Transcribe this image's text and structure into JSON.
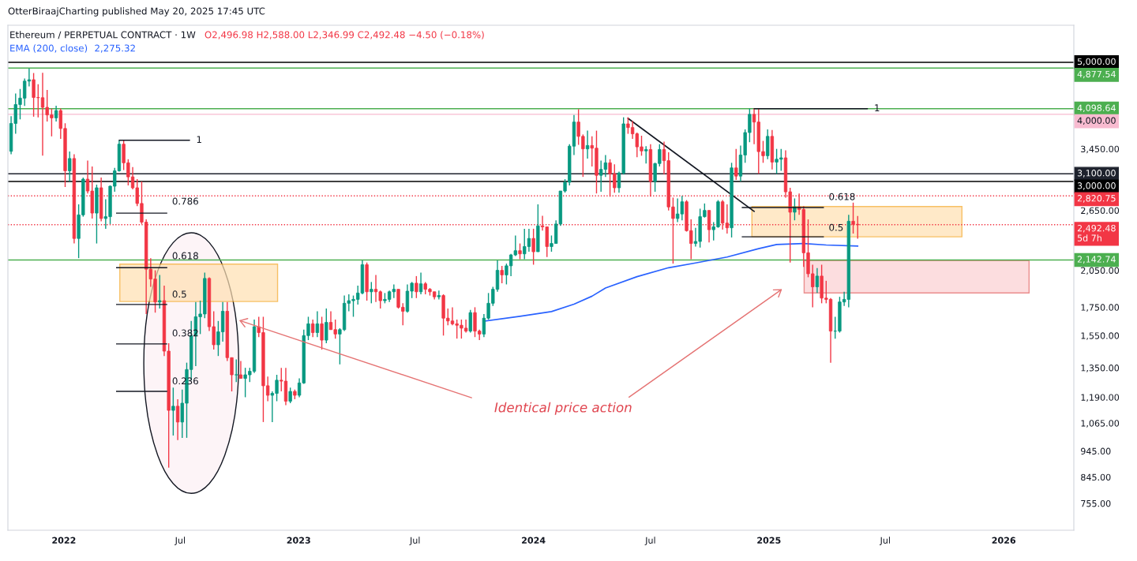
{
  "chart_data": {
    "type": "candlestick",
    "title": "Ethereum / PERPETUAL CONTRACT · 1W",
    "subtitle": "O2,496.98 H2,588.00 L2,346.99 C2,492.48 −4.50 (−0.18%)",
    "annotations": [
      "OtterBiraajCharting published May 20, 2025 17:45 UTC",
      "Identical price action",
      "2,275.32",
      {
        "text": "1",
        "x": "2022-03-28",
        "y": 3580
      },
      "0.786",
      "0.618",
      "0.5",
      "0.382",
      "0.236",
      {
        "text": "1",
        "x": "2024-12-09",
        "y": 4098.64
      },
      "0.618",
      "0.5"
    ],
    "xlim": [
      "2021-10-06",
      "2026-04-20"
    ],
    "xticks": [
      {
        "value": "2022-01-01",
        "label": "2022"
      },
      {
        "value": "2022-07-01",
        "label": "Jul"
      },
      {
        "value": "2023-01-01",
        "label": "2023"
      },
      {
        "value": "2023-07-01",
        "label": "Jul"
      },
      {
        "value": "2024-01-01",
        "label": "2024"
      },
      {
        "value": "2024-07-01",
        "label": "Jul"
      },
      {
        "value": "2025-01-01",
        "label": "2025"
      },
      {
        "value": "2025-07-01",
        "label": "Jul"
      },
      {
        "value": "2026-01-01",
        "label": "2026"
      }
    ],
    "log": "y",
    "ylim": [
      673,
      5860
    ],
    "yticks": [
      {
        "value": 755,
        "label": "755.00"
      },
      {
        "value": 845,
        "label": "845.00"
      },
      {
        "value": 945,
        "label": "945.00"
      },
      {
        "value": 1065,
        "label": "1,065.00"
      },
      {
        "value": 1190,
        "label": "1,190.00"
      },
      {
        "value": 1350,
        "label": "1,350.00"
      },
      {
        "value": 1550,
        "label": "1,550.00"
      },
      {
        "value": 1750,
        "label": "1,750.00"
      },
      {
        "value": 2050,
        "label": "2,050.00"
      },
      {
        "value": 2650,
        "label": "2,650.00"
      },
      {
        "value": 3450,
        "label": "3,450.00"
      }
    ],
    "ref_lines": [
      {
        "axis": "y",
        "value": 5000,
        "label": "5,000.00",
        "color": "#000000",
        "line_style": "solid"
      },
      {
        "axis": "y",
        "value": 4877.54,
        "label": "4,877.54",
        "color": "#4caf50",
        "line_style": "solid"
      },
      {
        "axis": "y",
        "value": 4098.64,
        "label": "4,098.64",
        "color": "#4caf50",
        "line_style": "solid"
      },
      {
        "axis": "y",
        "value": 4000,
        "label": "4,000.00",
        "color": "#f8bbd0",
        "line_style": "solid"
      },
      {
        "axis": "y",
        "value": 3100,
        "label": "3,100.00",
        "color": "#1e222d",
        "line_style": "solid"
      },
      {
        "axis": "y",
        "value": 3000,
        "label": "3,000.00",
        "color": "#000000",
        "line_style": "solid"
      },
      {
        "axis": "y",
        "value": 2820.75,
        "label": "2,820.75",
        "color": "#f23645",
        "line_style": "dotted"
      },
      {
        "axis": "y",
        "value": 2492.48,
        "label": "2,492.48\n5d 7h",
        "color": "#f23645",
        "line_style": "dotted"
      },
      {
        "axis": "y",
        "value": 2142.74,
        "label": "2,142.74",
        "color": "#4caf50",
        "line_style": "solid"
      }
    ],
    "marker": "none",
    "series": [
      {
        "type": "line",
        "color": "#131722",
        "x": [
          "2024-05-27",
          "2024-12-09"
        ],
        "values": [
          3932,
          2639
        ]
      },
      {
        "type": "line",
        "name": "EMA (200, close)",
        "color": "#2962ff",
        "x": [
          "2023-10-16",
          "2023-12-11",
          "2024-01-29",
          "2024-03-04",
          "2024-04-01",
          "2024-04-22",
          "2024-06-10",
          "2024-07-29",
          "2024-09-09",
          "2024-10-28",
          "2024-12-16",
          "2025-01-13",
          "2025-02-24",
          "2025-03-31",
          "2025-05-19"
        ],
        "values": [
          1649,
          1683,
          1718,
          1773,
          1835,
          1900,
          1995,
          2073,
          2116,
          2170,
          2250,
          2290,
          2300,
          2285,
          2275.32
        ]
      },
      {
        "colors": [
          "#089981",
          "#089981",
          "#089981",
          "#089981",
          "#089981",
          "#f23645",
          "#f23645",
          "#f23645",
          "#f23645",
          "#f23645",
          "#089981",
          "#f23645",
          "#f23645",
          "#089981",
          "#f23645",
          "#089981",
          "#089981",
          "#f23645",
          "#f23645",
          "#089981",
          "#f23645",
          "#089981",
          "#089981",
          "#089981",
          "#089981",
          "#f23645",
          "#f23645",
          "#f23645",
          "#f23645",
          "#f23645",
          "#f23645",
          "#f23645",
          "#f23645",
          "#089981",
          "#f23645",
          "#f23645",
          "#089981",
          "#f23645",
          "#089981",
          "#089981",
          "#089981",
          "#089981",
          "#089981",
          "#089981",
          "#f23645",
          "#f23645",
          "#089981",
          "#089981",
          "#f23645",
          "#f23645",
          "#089981",
          "#f23645",
          "#089981",
          "#089981",
          "#089981",
          "#f23645",
          "#f23645",
          "#f23645",
          "#089981",
          "#089981",
          "#f23645",
          "#f23645",
          "#089981",
          "#f23645",
          "#089981",
          "#089981",
          "#089981",
          "#f23645",
          "#089981",
          "#f23645",
          "#089981",
          "#f23645",
          "#f23645",
          "#089981",
          "#089981",
          "#089981",
          "#089981",
          "#089981",
          "#089981",
          "#f23645",
          "#089981",
          "#f23645",
          "#f23645",
          "#089981",
          "#089981",
          "#089981",
          "#f23645",
          "#f23645",
          "#089981",
          "#089981",
          "#f23645",
          "#089981",
          "#f23645",
          "#f23645",
          "#f23645",
          "#089981",
          "#f23645",
          "#f23645",
          "#f23645",
          "#f23645",
          "#f23645",
          "#f23645",
          "#089981",
          "#f23645",
          "#f23645",
          "#089981",
          "#089981",
          "#089981",
          "#089981",
          "#f23645",
          "#089981",
          "#089981",
          "#089981",
          "#f23645",
          "#089981",
          "#089981",
          "#f23645",
          "#089981",
          "#f23645",
          "#f23645",
          "#089981",
          "#089981",
          "#089981",
          "#089981",
          "#089981",
          "#089981",
          "#f23645",
          "#f23645",
          "#089981",
          "#f23645",
          "#f23645",
          "#089981",
          "#089981",
          "#f23645",
          "#f23645",
          "#089981",
          "#089981",
          "#f23645",
          "#f23645",
          "#f23645",
          "#f23645",
          "#089981",
          "#f23645",
          "#089981",
          "#089981",
          "#f23645",
          "#f23645",
          "#f23645",
          "#089981",
          "#089981",
          "#f23645",
          "#f23645",
          "#089981",
          "#089981",
          "#089981",
          "#f23645",
          "#089981",
          "#089981",
          "#f23645",
          "#f23645",
          "#089981",
          "#f23645",
          "#089981",
          "#089981",
          "#089981",
          "#f23645",
          "#f23645",
          "#f23645",
          "#089981",
          "#f23645",
          "#089981",
          "#089981",
          "#f23645",
          "#f23645",
          "#089981",
          "#f23645",
          "#f23645",
          "#f23645",
          "#f23645",
          "#089981",
          "#f23645",
          "#f23645",
          "#f23645",
          "#089981",
          "#089981",
          "#089981",
          "#089981",
          "#f23645",
          "#f23645"
        ],
        "x": [
          "2021-10-11",
          "2021-10-18",
          "2021-10-25",
          "2021-11-01",
          "2021-11-08",
          "2021-11-15",
          "2021-11-22",
          "2021-11-29",
          "2021-12-06",
          "2021-12-13",
          "2021-12-20",
          "2021-12-27",
          "2022-01-03",
          "2022-01-10",
          "2022-01-17",
          "2022-01-24",
          "2022-01-31",
          "2022-02-07",
          "2022-02-14",
          "2022-02-21",
          "2022-02-28",
          "2022-03-07",
          "2022-03-14",
          "2022-03-21",
          "2022-03-28",
          "2022-04-04",
          "2022-04-11",
          "2022-04-18",
          "2022-04-25",
          "2022-05-02",
          "2022-05-09",
          "2022-05-16",
          "2022-05-23",
          "2022-05-30",
          "2022-06-06",
          "2022-06-13",
          "2022-06-20",
          "2022-06-27",
          "2022-07-04",
          "2022-07-11",
          "2022-07-18",
          "2022-07-25",
          "2022-08-01",
          "2022-08-08",
          "2022-08-15",
          "2022-08-22",
          "2022-08-29",
          "2022-09-05",
          "2022-09-12",
          "2022-09-19",
          "2022-09-26",
          "2022-10-03",
          "2022-10-10",
          "2022-10-17",
          "2022-10-24",
          "2022-10-31",
          "2022-11-07",
          "2022-11-14",
          "2022-11-21",
          "2022-11-28",
          "2022-12-05",
          "2022-12-12",
          "2022-12-19",
          "2022-12-26",
          "2023-01-02",
          "2023-01-09",
          "2023-01-16",
          "2023-01-23",
          "2023-01-30",
          "2023-02-06",
          "2023-02-13",
          "2023-02-20",
          "2023-02-27",
          "2023-03-06",
          "2023-03-13",
          "2023-03-20",
          "2023-03-27",
          "2023-04-03",
          "2023-04-10",
          "2023-04-17",
          "2023-04-24",
          "2023-05-01",
          "2023-05-08",
          "2023-05-15",
          "2023-05-22",
          "2023-05-29",
          "2023-06-05",
          "2023-06-12",
          "2023-06-19",
          "2023-06-26",
          "2023-07-03",
          "2023-07-10",
          "2023-07-17",
          "2023-07-24",
          "2023-07-31",
          "2023-08-07",
          "2023-08-14",
          "2023-08-21",
          "2023-08-28",
          "2023-09-04",
          "2023-09-11",
          "2023-09-18",
          "2023-09-25",
          "2023-10-02",
          "2023-10-09",
          "2023-10-16",
          "2023-10-23",
          "2023-10-30",
          "2023-11-06",
          "2023-11-13",
          "2023-11-20",
          "2023-11-27",
          "2023-12-04",
          "2023-12-11",
          "2023-12-18",
          "2023-12-25",
          "2024-01-01",
          "2024-01-08",
          "2024-01-15",
          "2024-01-22",
          "2024-01-29",
          "2024-02-05",
          "2024-02-12",
          "2024-02-19",
          "2024-02-26",
          "2024-03-04",
          "2024-03-11",
          "2024-03-18",
          "2024-03-25",
          "2024-04-01",
          "2024-04-08",
          "2024-04-15",
          "2024-04-22",
          "2024-04-29",
          "2024-05-06",
          "2024-05-13",
          "2024-05-20",
          "2024-05-27",
          "2024-06-03",
          "2024-06-10",
          "2024-06-17",
          "2024-06-24",
          "2024-07-01",
          "2024-07-08",
          "2024-07-15",
          "2024-07-22",
          "2024-07-29",
          "2024-08-05",
          "2024-08-12",
          "2024-08-19",
          "2024-08-26",
          "2024-09-02",
          "2024-09-09",
          "2024-09-16",
          "2024-09-23",
          "2024-09-30",
          "2024-10-07",
          "2024-10-14",
          "2024-10-21",
          "2024-10-28",
          "2024-11-04",
          "2024-11-11",
          "2024-11-18",
          "2024-11-25",
          "2024-12-02",
          "2024-12-09",
          "2024-12-16",
          "2024-12-23",
          "2024-12-30",
          "2025-01-06",
          "2025-01-13",
          "2025-01-20",
          "2025-01-27",
          "2025-02-03",
          "2025-02-10",
          "2025-02-17",
          "2025-02-24",
          "2025-03-03",
          "2025-03-10",
          "2025-03-17",
          "2025-03-24",
          "2025-03-31",
          "2025-04-07",
          "2025-04-14",
          "2025-04-21",
          "2025-04-28",
          "2025-05-05",
          "2025-05-12",
          "2025-05-19"
        ],
        "ohlc": [
          [
            3414,
            3970,
            3370,
            3847
          ],
          [
            3847,
            4375,
            3680,
            4172
          ],
          [
            4172,
            4460,
            3915,
            4288
          ],
          [
            4288,
            4665,
            4146,
            4612
          ],
          [
            4612,
            4868,
            4510,
            4640
          ],
          [
            4640,
            4775,
            3960,
            4300
          ],
          [
            4300,
            4550,
            3950,
            4296
          ],
          [
            4296,
            4778,
            3350,
            4122
          ],
          [
            4122,
            4440,
            3880,
            3990
          ],
          [
            3990,
            4100,
            3640,
            3940
          ],
          [
            3940,
            4150,
            3880,
            4065
          ],
          [
            4065,
            4100,
            3600,
            3765
          ],
          [
            3765,
            3850,
            2930,
            3140
          ],
          [
            3140,
            3410,
            3000,
            3310
          ],
          [
            3310,
            3370,
            2300,
            2350
          ],
          [
            2350,
            2720,
            2160,
            2600
          ],
          [
            2600,
            3050,
            2580,
            3030
          ],
          [
            3030,
            3280,
            2850,
            2880
          ],
          [
            2880,
            3200,
            2560,
            2620
          ],
          [
            2620,
            2960,
            2300,
            2920
          ],
          [
            2920,
            3050,
            2530,
            2560
          ],
          [
            2560,
            2780,
            2450,
            2580
          ],
          [
            2580,
            2950,
            2500,
            2940
          ],
          [
            2940,
            3180,
            2870,
            3140
          ],
          [
            3140,
            3580,
            3130,
            3520
          ],
          [
            3520,
            3580,
            3150,
            3250
          ],
          [
            3250,
            3300,
            2950,
            3060
          ],
          [
            3060,
            3190,
            2900,
            2920
          ],
          [
            2920,
            3030,
            2700,
            2730
          ],
          [
            2730,
            3000,
            2500,
            2520
          ],
          [
            2520,
            2550,
            1700,
            2060
          ],
          [
            2060,
            2160,
            1910,
            1975
          ],
          [
            1975,
            2050,
            1710,
            1790
          ],
          [
            1790,
            2010,
            1740,
            1800
          ],
          [
            1800,
            1920,
            1420,
            1450
          ],
          [
            1450,
            1500,
            880,
            1125
          ],
          [
            1125,
            1240,
            1010,
            1145
          ],
          [
            1145,
            1180,
            990,
            1070
          ],
          [
            1070,
            1230,
            1000,
            1160
          ],
          [
            1160,
            1380,
            1000,
            1340
          ],
          [
            1340,
            1650,
            1280,
            1550
          ],
          [
            1550,
            1790,
            1360,
            1680
          ],
          [
            1680,
            1800,
            1560,
            1700
          ],
          [
            1700,
            2030,
            1670,
            1980
          ],
          [
            1980,
            1990,
            1580,
            1610
          ],
          [
            1610,
            1720,
            1460,
            1490
          ],
          [
            1490,
            1650,
            1420,
            1575
          ],
          [
            1575,
            1790,
            1510,
            1720
          ],
          [
            1720,
            1790,
            1390,
            1410
          ],
          [
            1410,
            1410,
            1220,
            1310
          ],
          [
            1310,
            1400,
            1270,
            1310
          ],
          [
            1310,
            1390,
            1290,
            1290
          ],
          [
            1290,
            1350,
            1190,
            1310
          ],
          [
            1310,
            1350,
            1270,
            1330
          ],
          [
            1330,
            1660,
            1320,
            1610
          ],
          [
            1610,
            1680,
            1540,
            1570
          ],
          [
            1570,
            1680,
            1070,
            1250
          ],
          [
            1250,
            1300,
            1170,
            1200
          ],
          [
            1200,
            1220,
            1070,
            1210
          ],
          [
            1210,
            1310,
            1170,
            1280
          ],
          [
            1280,
            1350,
            1220,
            1275
          ],
          [
            1275,
            1350,
            1150,
            1170
          ],
          [
            1170,
            1240,
            1160,
            1220
          ],
          [
            1220,
            1230,
            1180,
            1200
          ],
          [
            1200,
            1290,
            1190,
            1265
          ],
          [
            1265,
            1590,
            1260,
            1550
          ],
          [
            1550,
            1680,
            1520,
            1630
          ],
          [
            1630,
            1660,
            1540,
            1570
          ],
          [
            1570,
            1720,
            1540,
            1630
          ],
          [
            1630,
            1680,
            1460,
            1520
          ],
          [
            1520,
            1740,
            1500,
            1640
          ],
          [
            1640,
            1720,
            1590,
            1590
          ],
          [
            1590,
            1660,
            1530,
            1560
          ],
          [
            1560,
            1600,
            1370,
            1590
          ],
          [
            1590,
            1840,
            1580,
            1780
          ],
          [
            1780,
            1850,
            1720,
            1800
          ],
          [
            1800,
            1840,
            1680,
            1810
          ],
          [
            1810,
            1920,
            1770,
            1860
          ],
          [
            1860,
            2140,
            1850,
            2100
          ],
          [
            2100,
            2120,
            1800,
            1870
          ],
          [
            1870,
            1950,
            1780,
            1890
          ],
          [
            1890,
            2010,
            1790,
            1870
          ],
          [
            1870,
            1880,
            1740,
            1800
          ],
          [
            1800,
            1860,
            1780,
            1810
          ],
          [
            1810,
            1880,
            1790,
            1870
          ],
          [
            1870,
            1930,
            1820,
            1890
          ],
          [
            1890,
            1890,
            1740,
            1750
          ],
          [
            1750,
            1780,
            1620,
            1720
          ],
          [
            1720,
            1930,
            1710,
            1875
          ],
          [
            1875,
            1950,
            1820,
            1940
          ],
          [
            1940,
            2000,
            1820,
            1870
          ],
          [
            1870,
            2030,
            1850,
            1935
          ],
          [
            1935,
            1950,
            1850,
            1890
          ],
          [
            1890,
            1900,
            1840,
            1870
          ],
          [
            1870,
            1870,
            1810,
            1830
          ],
          [
            1830,
            1880,
            1810,
            1840
          ],
          [
            1840,
            1850,
            1550,
            1670
          ],
          [
            1670,
            1740,
            1620,
            1650
          ],
          [
            1650,
            1750,
            1620,
            1630
          ],
          [
            1630,
            1660,
            1530,
            1620
          ],
          [
            1620,
            1660,
            1530,
            1600
          ],
          [
            1600,
            1660,
            1570,
            1580
          ],
          [
            1580,
            1730,
            1570,
            1710
          ],
          [
            1710,
            1750,
            1540,
            1580
          ],
          [
            1580,
            1590,
            1520,
            1560
          ],
          [
            1560,
            1700,
            1540,
            1670
          ],
          [
            1670,
            1860,
            1660,
            1780
          ],
          [
            1780,
            1910,
            1760,
            1890
          ],
          [
            1890,
            2140,
            1870,
            2050
          ],
          [
            2050,
            2090,
            1940,
            2010
          ],
          [
            2010,
            2110,
            1930,
            2090
          ],
          [
            2090,
            2200,
            2000,
            2190
          ],
          [
            2190,
            2380,
            2180,
            2230
          ],
          [
            2230,
            2300,
            2150,
            2200
          ],
          [
            2200,
            2450,
            2150,
            2270
          ],
          [
            2270,
            2450,
            2220,
            2350
          ],
          [
            2350,
            2450,
            2100,
            2220
          ],
          [
            2220,
            2720,
            2220,
            2480
          ],
          [
            2480,
            2590,
            2430,
            2470
          ],
          [
            2470,
            2470,
            2170,
            2270
          ],
          [
            2270,
            2380,
            2220,
            2300
          ],
          [
            2300,
            2540,
            2300,
            2500
          ],
          [
            2500,
            2880,
            2480,
            2880
          ],
          [
            2880,
            3030,
            2860,
            2990
          ],
          [
            2990,
            3520,
            2950,
            3490
          ],
          [
            3490,
            3990,
            3360,
            3870
          ],
          [
            3870,
            4090,
            3510,
            3640
          ],
          [
            3640,
            3670,
            3060,
            3450
          ],
          [
            3450,
            3730,
            3310,
            3500
          ],
          [
            3500,
            3640,
            3200,
            3460
          ],
          [
            3460,
            3730,
            2850,
            3080
          ],
          [
            3080,
            3280,
            2870,
            3160
          ],
          [
            3160,
            3360,
            3060,
            3250
          ],
          [
            3250,
            3300,
            2810,
            3100
          ],
          [
            3100,
            3230,
            2860,
            2920
          ],
          [
            2920,
            3130,
            2860,
            3110
          ],
          [
            3110,
            3950,
            3090,
            3840
          ],
          [
            3840,
            3950,
            3680,
            3780
          ],
          [
            3780,
            3890,
            3600,
            3680
          ],
          [
            3680,
            3700,
            3330,
            3480
          ],
          [
            3480,
            3650,
            3350,
            3420
          ],
          [
            3420,
            3490,
            3240,
            3440
          ],
          [
            3440,
            3520,
            2810,
            3000
          ],
          [
            3000,
            3250,
            2870,
            3240
          ],
          [
            3240,
            3520,
            3200,
            3440
          ],
          [
            3440,
            3560,
            3090,
            3280
          ],
          [
            3280,
            3400,
            2650,
            2690
          ],
          [
            2690,
            2800,
            2110,
            2560
          ],
          [
            2560,
            2790,
            2520,
            2610
          ],
          [
            2610,
            2820,
            2540,
            2750
          ],
          [
            2750,
            2770,
            2420,
            2430
          ],
          [
            2430,
            2550,
            2150,
            2300
          ],
          [
            2300,
            2460,
            2270,
            2320
          ],
          [
            2320,
            2670,
            2260,
            2580
          ],
          [
            2580,
            2730,
            2570,
            2650
          ],
          [
            2650,
            2650,
            2310,
            2440
          ],
          [
            2440,
            2520,
            2330,
            2470
          ],
          [
            2470,
            2770,
            2460,
            2750
          ],
          [
            2750,
            2770,
            2440,
            2510
          ],
          [
            2510,
            2720,
            2400,
            2460
          ],
          [
            2460,
            3250,
            2360,
            3180
          ],
          [
            3180,
            3450,
            3020,
            3070
          ],
          [
            3070,
            3500,
            3000,
            3360
          ],
          [
            3360,
            3750,
            3250,
            3700
          ],
          [
            3700,
            4100,
            3550,
            4000
          ],
          [
            4000,
            4110,
            3520,
            3870
          ],
          [
            3870,
            4100,
            3100,
            3410
          ],
          [
            3410,
            3570,
            3250,
            3350
          ],
          [
            3350,
            3750,
            3300,
            3640
          ],
          [
            3640,
            3740,
            3160,
            3260
          ],
          [
            3260,
            3450,
            3100,
            3300
          ],
          [
            3300,
            3450,
            3140,
            3320
          ],
          [
            3320,
            3430,
            2800,
            2870
          ],
          [
            2870,
            2920,
            2120,
            2630
          ],
          [
            2630,
            2790,
            2540,
            2690
          ],
          [
            2690,
            2850,
            2600,
            2660
          ],
          [
            2660,
            2700,
            2080,
            2210
          ],
          [
            2210,
            2550,
            1990,
            2020
          ],
          [
            2020,
            2100,
            1750,
            1910
          ],
          [
            1910,
            2070,
            1860,
            2000
          ],
          [
            2000,
            2100,
            1780,
            1820
          ],
          [
            1820,
            1960,
            1780,
            1810
          ],
          [
            1810,
            1820,
            1380,
            1580
          ],
          [
            1580,
            1680,
            1530,
            1580
          ],
          [
            1580,
            1830,
            1570,
            1790
          ],
          [
            1790,
            1870,
            1760,
            1810
          ],
          [
            1810,
            2600,
            1750,
            2530
          ],
          [
            2530,
            2740,
            2400,
            2497
          ],
          [
            2496.98,
            2588.0,
            2346.99,
            2492.48
          ]
        ]
      }
    ]
  }
}
